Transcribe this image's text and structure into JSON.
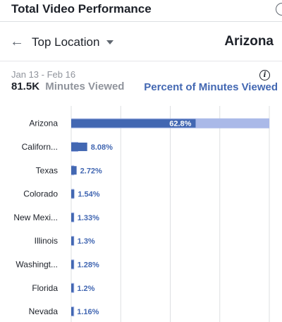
{
  "header": {
    "title": "Total Video Performance"
  },
  "nav": {
    "dropdown_label": "Top Location",
    "selected": "Arizona"
  },
  "summary": {
    "date_range": "Jan 13 - Feb 16",
    "value": "81.5K",
    "metric_label": "Minutes Viewed",
    "toggle_label": "Percent of Minutes Viewed"
  },
  "colors": {
    "bar": "#4267b2",
    "bar_light": "#aab9e8",
    "grid": "#dddfe2",
    "label": "#1d2129",
    "value": "#4267b2"
  },
  "chart_data": {
    "type": "bar",
    "orientation": "horizontal",
    "title": "",
    "xlabel": "",
    "ylabel": "",
    "xlim": [
      0,
      100
    ],
    "grid": true,
    "categories": [
      "Arizona",
      "Californ...",
      "Texas",
      "Colorado",
      "New Mexi...",
      "Illinois",
      "Washingt...",
      "Florida",
      "Nevada"
    ],
    "values": [
      62.8,
      8.08,
      2.72,
      1.54,
      1.33,
      1.3,
      1.28,
      1.2,
      1.16
    ],
    "value_labels": [
      "62.8%",
      "8.08%",
      "2.72%",
      "1.54%",
      "1.33%",
      "1.3%",
      "1.28%",
      "1.2%",
      "1.16%"
    ],
    "background_values": [
      100,
      3.5,
      1.5,
      1.5,
      1.5,
      1.5,
      1.5,
      1.5,
      1.5
    ]
  }
}
